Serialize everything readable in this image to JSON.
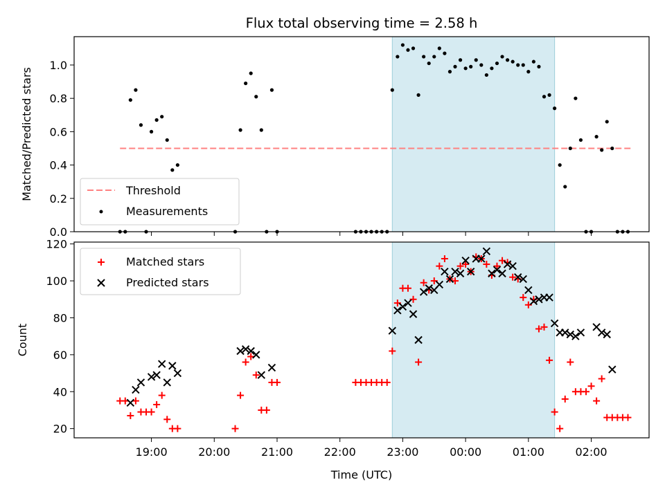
{
  "chart_data": [
    {
      "type": "scatter",
      "title": "Flux total observing time = 2.58 h",
      "xlabel": "",
      "ylabel": "Matched/Predicted stars",
      "ylim": [
        0,
        1.17
      ],
      "yticks": [
        "0.0",
        "0.2",
        "0.4",
        "0.6",
        "0.8",
        "1.0"
      ],
      "x_range_hours": [
        17.77,
        26.92
      ],
      "shaded_span": [
        "22:50",
        "01:25"
      ],
      "threshold": {
        "name": "Threshold",
        "y": 0.5,
        "x_start": "18:30",
        "x_end": "02:38",
        "color": "#ff8080"
      },
      "legend": {
        "position": "lower-left",
        "entries": [
          "Threshold",
          "Measurements"
        ]
      },
      "series": [
        {
          "name": "Measurements",
          "color": "#000000",
          "x": [
            "18:30",
            "18:35",
            "18:40",
            "18:45",
            "18:50",
            "18:55",
            "19:00",
            "19:05",
            "19:10",
            "19:15",
            "19:20",
            "19:25",
            "19:30",
            "20:20",
            "20:25",
            "20:30",
            "20:35",
            "20:40",
            "20:45",
            "20:50",
            "20:55",
            "21:00",
            "22:15",
            "22:20",
            "22:25",
            "22:30",
            "22:35",
            "22:40",
            "22:45",
            "22:50",
            "22:55",
            "23:00",
            "23:05",
            "23:10",
            "23:15",
            "23:20",
            "23:25",
            "23:30",
            "23:35",
            "23:40",
            "23:45",
            "23:50",
            "23:55",
            "00:00",
            "00:05",
            "00:10",
            "00:15",
            "00:20",
            "00:25",
            "00:30",
            "00:35",
            "00:40",
            "00:45",
            "00:50",
            "00:55",
            "01:00",
            "01:05",
            "01:10",
            "01:15",
            "01:20",
            "01:25",
            "01:30",
            "01:35",
            "01:40",
            "01:45",
            "01:50",
            "01:55",
            "02:00",
            "02:05",
            "02:10",
            "02:15",
            "02:20",
            "02:25",
            "02:30",
            "02:35"
          ],
          "values": [
            0.0,
            0.0,
            0.79,
            0.85,
            0.64,
            0.0,
            0.6,
            0.67,
            0.69,
            0.55,
            0.37,
            0.4,
            null,
            0.0,
            0.61,
            0.89,
            0.95,
            0.81,
            0.61,
            0.0,
            0.85,
            0.0,
            0.0,
            0.0,
            0.0,
            0.0,
            0.0,
            0.0,
            0.0,
            0.85,
            1.05,
            1.12,
            1.09,
            1.1,
            0.82,
            1.05,
            1.01,
            1.05,
            1.1,
            1.07,
            0.96,
            0.99,
            1.03,
            0.98,
            0.99,
            1.03,
            1.0,
            0.94,
            0.98,
            1.01,
            1.05,
            1.03,
            1.02,
            1.0,
            1.0,
            0.96,
            1.02,
            0.99,
            0.81,
            0.82,
            0.74,
            0.4,
            0.27,
            0.5,
            0.8,
            0.55,
            0.0,
            0.0,
            0.57,
            0.49,
            0.66,
            0.5,
            0.0,
            0.0,
            0.0
          ]
        }
      ]
    },
    {
      "type": "scatter",
      "title": "",
      "xlabel": "Time (UTC)",
      "ylabel": "Count",
      "ylim": [
        15,
        121
      ],
      "yticks": [
        "20",
        "40",
        "60",
        "80",
        "100",
        "120"
      ],
      "x_range_hours": [
        17.77,
        26.92
      ],
      "xticks": [
        "19:00",
        "20:00",
        "21:00",
        "22:00",
        "23:00",
        "00:00",
        "01:00",
        "02:00"
      ],
      "shaded_span": [
        "22:50",
        "01:25"
      ],
      "legend": {
        "position": "top-left",
        "entries": [
          "Matched stars",
          "Predicted stars"
        ]
      },
      "series": [
        {
          "name": "Matched stars",
          "marker": "plus",
          "color": "#ff0000",
          "x": [
            "18:30",
            "18:35",
            "18:40",
            "18:45",
            "18:50",
            "18:55",
            "19:00",
            "19:05",
            "19:10",
            "19:15",
            "19:20",
            "19:25",
            "20:20",
            "20:25",
            "20:30",
            "20:35",
            "20:40",
            "20:45",
            "20:50",
            "20:55",
            "21:00",
            "22:15",
            "22:20",
            "22:25",
            "22:30",
            "22:35",
            "22:40",
            "22:45",
            "22:50",
            "22:55",
            "23:00",
            "23:05",
            "23:10",
            "23:15",
            "23:20",
            "23:25",
            "23:30",
            "23:35",
            "23:40",
            "23:45",
            "23:50",
            "23:55",
            "00:00",
            "00:05",
            "00:10",
            "00:15",
            "00:20",
            "00:25",
            "00:30",
            "00:35",
            "00:40",
            "00:45",
            "00:50",
            "00:55",
            "01:00",
            "01:05",
            "01:10",
            "01:15",
            "01:20",
            "01:25",
            "01:30",
            "01:35",
            "01:40",
            "01:45",
            "01:50",
            "01:55",
            "02:00",
            "02:05",
            "02:10",
            "02:15",
            "02:20",
            "02:25",
            "02:30",
            "02:35"
          ],
          "values": [
            35,
            35,
            27,
            35,
            29,
            29,
            29,
            33,
            38,
            25,
            20,
            20,
            20,
            38,
            56,
            59,
            49,
            30,
            30,
            45,
            45,
            45,
            45,
            45,
            45,
            45,
            45,
            45,
            62,
            88,
            96,
            96,
            90,
            56,
            99,
            95,
            100,
            108,
            112,
            101,
            100,
            108,
            109,
            105,
            113,
            112,
            109,
            103,
            108,
            111,
            110,
            102,
            101,
            91,
            87,
            90,
            74,
            75,
            57,
            29,
            20,
            36,
            56,
            40,
            40,
            40,
            43,
            35,
            47,
            26,
            26,
            26,
            26,
            26
          ],
          "note_x_offset": 0
        },
        {
          "name": "Predicted stars",
          "marker": "x",
          "color": "#000000",
          "x": [
            "18:40",
            "18:45",
            "18:50",
            "19:00",
            "19:05",
            "19:10",
            "19:15",
            "19:20",
            "19:25",
            "20:25",
            "20:30",
            "20:35",
            "20:40",
            "20:45",
            "20:55",
            "22:50",
            "22:55",
            "23:00",
            "23:05",
            "23:10",
            "23:15",
            "23:20",
            "23:25",
            "23:30",
            "23:35",
            "23:40",
            "23:45",
            "23:50",
            "23:55",
            "00:00",
            "00:05",
            "00:10",
            "00:15",
            "00:20",
            "00:25",
            "00:30",
            "00:35",
            "00:40",
            "00:45",
            "00:50",
            "00:55",
            "01:00",
            "01:05",
            "01:10",
            "01:15",
            "01:20",
            "01:25",
            "01:30",
            "01:35",
            "01:40",
            "01:45",
            "01:50",
            "02:05",
            "02:10",
            "02:15",
            "02:20"
          ],
          "values": [
            34,
            41,
            45,
            48,
            49,
            55,
            45,
            54,
            50,
            62,
            63,
            62,
            60,
            49,
            53,
            73,
            84,
            86,
            88,
            82,
            68,
            94,
            96,
            95,
            98,
            105,
            101,
            105,
            104,
            111,
            105,
            112,
            112,
            116,
            104,
            106,
            104,
            109,
            108,
            102,
            101,
            95,
            89,
            90,
            91,
            91,
            77,
            72,
            72,
            71,
            70,
            72,
            75,
            72,
            71,
            52
          ]
        }
      ]
    }
  ]
}
